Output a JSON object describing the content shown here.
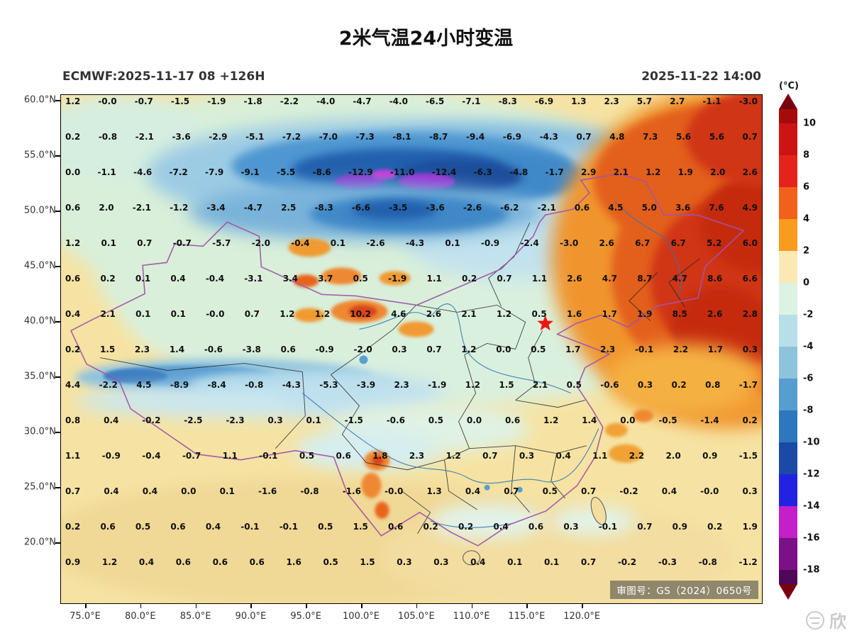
{
  "title": "2米气温24小时变温",
  "subtitle_left": "ECMWF:2025-11-17 08 +126H",
  "subtitle_right": "2025-11-22 14:00",
  "map_notice": "审图号：GS（2024）0650号",
  "watermark": "欣",
  "marker": {
    "name": "beijing-star",
    "color": "#ee1510"
  },
  "axes": {
    "lat_labels": [
      "60.0°N",
      "55.0°N",
      "50.0°N",
      "45.0°N",
      "40.0°N",
      "35.0°N",
      "30.0°N",
      "25.0°N",
      "20.0°N"
    ],
    "lon_labels": [
      "75.0°E",
      "80.0°E",
      "85.0°E",
      "90.0°E",
      "95.0°E",
      "100.0°E",
      "105.0°E",
      "110.0°E",
      "115.0°E",
      "120.0°E"
    ]
  },
  "colorbar": {
    "unit": "(°C)",
    "labels": [
      "10",
      "8",
      "6",
      "4",
      "2",
      "0",
      "-2",
      "-4",
      "-6",
      "-8",
      "-10",
      "-12",
      "-14",
      "-16",
      "-18"
    ],
    "colors_top_to_bottom": [
      "#a50b0b",
      "#cd1414",
      "#e4241a",
      "#f2611b",
      "#f89b1f",
      "#fae9b4",
      "#dcf2e3",
      "#b7dfe8",
      "#8ec3dc",
      "#569dd0",
      "#2c77bd",
      "#1a4aa5",
      "#2222e2",
      "#c41fc8",
      "#7c1086",
      "#4e0857"
    ],
    "arrow_top_color": "#7a0210",
    "arrow_bottom_color": "#7a0210"
  },
  "chart_data": {
    "type": "heatmap",
    "title": "2米气温24小时变温",
    "model_run": "ECMWF:2025-11-17 08 +126H",
    "valid_time": "2025-11-22 14:00",
    "unit": "°C",
    "value_range": [
      -18,
      10
    ],
    "lat_range_labeled": [
      20,
      60
    ],
    "lon_range_labeled": [
      75,
      120
    ],
    "legend_position": "right",
    "grid_values": [
      [
        "1.2",
        "-0.0",
        "-0.7",
        "-1.5",
        "-1.9",
        "-1.8",
        "-2.2",
        "-4.0",
        "-4.7",
        "-4.0",
        "-6.5",
        "-7.1",
        "-8.3",
        "-6.9",
        "1.3",
        "2.3",
        "5.7",
        "2.7",
        "-1.1",
        "-3.0"
      ],
      [
        "0.2",
        "-0.8",
        "-2.1",
        "-3.6",
        "-2.9",
        "-5.1",
        "-7.2",
        "-7.0",
        "-7.3",
        "-8.1",
        "-8.7",
        "-9.4",
        "-6.9",
        "-4.3",
        "0.7",
        "4.8",
        "7.3",
        "5.6",
        "5.6",
        "0.7"
      ],
      [
        "0.0",
        "-1.1",
        "-4.6",
        "-7.2",
        "-7.9",
        "-9.1",
        "-5.5",
        "-8.6",
        "-12.9",
        "-11.0",
        "-12.4",
        "-6.3",
        "-4.8",
        "-1.7",
        "2.9",
        "2.1",
        "1.2",
        "1.9",
        "2.0",
        "2.6"
      ],
      [
        "0.6",
        "2.0",
        "-2.1",
        "-1.2",
        "-3.4",
        "-4.7",
        "2.5",
        "-8.3",
        "-6.6",
        "-3.5",
        "-3.6",
        "-2.6",
        "-6.2",
        "-2.1",
        "0.6",
        "4.5",
        "5.0",
        "3.6",
        "7.6",
        "4.9"
      ],
      [
        "1.2",
        "0.1",
        "0.7",
        "-0.7",
        "-5.7",
        "-2.0",
        "-0.4",
        "0.1",
        "-2.6",
        "-4.3",
        "0.1",
        "-0.9",
        "-2.4",
        "-3.0",
        "2.6",
        "6.7",
        "6.7",
        "5.2",
        "6.0"
      ],
      [
        "0.6",
        "0.2",
        "0.1",
        "0.4",
        "-0.4",
        "-3.1",
        "3.4",
        "3.7",
        "0.5",
        "-1.9",
        "1.1",
        "0.2",
        "0.7",
        "1.1",
        "2.6",
        "4.7",
        "8.7",
        "4.7",
        "8.6",
        "6.6"
      ],
      [
        "0.4",
        "2.1",
        "0.1",
        "0.1",
        "-0.0",
        "0.7",
        "1.2",
        "1.2",
        "10.2",
        "4.6",
        "2.6",
        "2.1",
        "1.2",
        "0.5",
        "1.6",
        "1.7",
        "1.9",
        "8.5",
        "2.6",
        "2.8"
      ],
      [
        "0.2",
        "1.5",
        "2.3",
        "1.4",
        "-0.6",
        "-3.8",
        "0.6",
        "-0.9",
        "-2.0",
        "0.3",
        "0.7",
        "1.2",
        "0.0",
        "0.5",
        "1.7",
        "2.3",
        "-0.1",
        "2.2",
        "1.7",
        "0.3"
      ],
      [
        "4.4",
        "-2.2",
        "4.5",
        "-8.9",
        "-8.4",
        "-0.8",
        "-4.3",
        "-5.3",
        "-3.9",
        "2.3",
        "-1.9",
        "1.2",
        "1.5",
        "2.1",
        "0.5",
        "-0.6",
        "0.3",
        "0.2",
        "0.8",
        "-1.7"
      ],
      [
        "0.8",
        "0.4",
        "-0.2",
        "-2.5",
        "-2.3",
        "0.3",
        "0.1",
        "-1.5",
        "-0.6",
        "0.5",
        "0.0",
        "0.6",
        "1.2",
        "1.4",
        "0.0",
        "-0.5",
        "-1.4",
        "0.2"
      ],
      [
        "1.1",
        "-0.9",
        "-0.4",
        "-0.7",
        "1.1",
        "-0.1",
        "0.5",
        "0.6",
        "1.8",
        "2.3",
        "1.2",
        "0.7",
        "0.3",
        "0.4",
        "1.1",
        "2.2",
        "2.0",
        "0.9",
        "-1.5"
      ],
      [
        "0.7",
        "0.4",
        "0.4",
        "0.0",
        "0.1",
        "-1.6",
        "-0.8",
        "-1.6",
        "-0.0",
        "1.3",
        "0.4",
        "0.7",
        "0.5",
        "0.7",
        "-0.2",
        "0.4",
        "-0.0",
        "0.3"
      ],
      [
        "0.2",
        "0.6",
        "0.5",
        "0.6",
        "0.4",
        "-0.1",
        "-0.1",
        "0.5",
        "1.5",
        "0.6",
        "0.2",
        "0.2",
        "0.4",
        "0.6",
        "0.3",
        "-0.1",
        "0.7",
        "0.9",
        "0.2",
        "1.9"
      ],
      [
        "0.9",
        "1.2",
        "0.4",
        "0.6",
        "0.6",
        "0.6",
        "1.6",
        "0.5",
        "1.5",
        "0.3",
        "0.3",
        "0.4",
        "0.1",
        "0.1",
        "0.7",
        "-0.2",
        "-0.3",
        "-0.8",
        "-1.2"
      ]
    ]
  }
}
